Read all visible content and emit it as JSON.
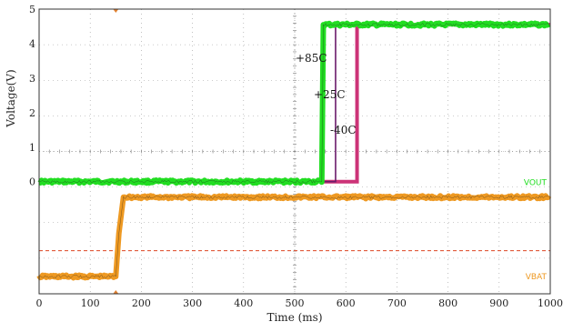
{
  "chart_data": {
    "type": "line",
    "xlabel": "Time (ms)",
    "ylabel": "Voltage(V)",
    "xlim": [
      0,
      1000
    ],
    "ylim": [
      -3.25,
      5
    ],
    "x_ticks": [
      0,
      100,
      200,
      300,
      400,
      500,
      600,
      700,
      800,
      900,
      1000
    ],
    "y_ticks": [
      0,
      1,
      2,
      3,
      4,
      5
    ],
    "grid": true,
    "series": [
      {
        "name": "VOUT",
        "color": "#22dd22",
        "x": [
          0,
          553,
          556,
          1000
        ],
        "y": [
          0,
          0,
          4.55,
          4.55
        ]
      },
      {
        "name": "VBAT",
        "color": "#ee9922",
        "x": [
          0,
          150,
          156,
          165,
          1000
        ],
        "y": [
          -2.75,
          -2.75,
          -1.5,
          -0.45,
          -0.45
        ]
      }
    ],
    "temperature_traces": [
      {
        "label": "+85C",
        "color": "#22dd22",
        "switch_x": 555
      },
      {
        "label": "+25C",
        "color": "#6b1b6b",
        "switch_x": 580
      },
      {
        "label": "-40C",
        "color": "#cc3377",
        "switch_x": 622
      }
    ],
    "reference_level_y": -2.0,
    "reference_color": "#dd4422"
  }
}
